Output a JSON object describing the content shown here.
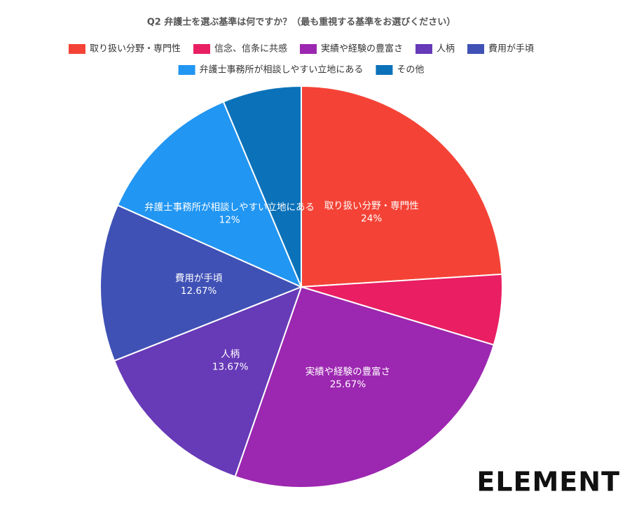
{
  "chart_data": {
    "type": "pie",
    "title": "Q2 弁護士を選ぶ基準は何ですか？（最も重視する基準をお選びください）",
    "categories": [
      "取り扱い分野・専門性",
      "信念、信条に共感",
      "実績や経験の豊富さ",
      "人柄",
      "費用が手頃",
      "弁護士事務所が相談しやすい立地にある",
      "その他"
    ],
    "values": [
      24,
      5.67,
      25.67,
      13.67,
      12.67,
      12,
      6.33
    ],
    "value_labels": [
      "24%",
      null,
      "25.67%",
      "13.67%",
      "12.67%",
      "12%",
      null
    ],
    "colors": [
      "#f44336",
      "#e91e63",
      "#9c27b0",
      "#673ab7",
      "#3f51b5",
      "#2196f3",
      "#0b72b9"
    ],
    "legend": "top"
  },
  "logo": "ELEMENT"
}
